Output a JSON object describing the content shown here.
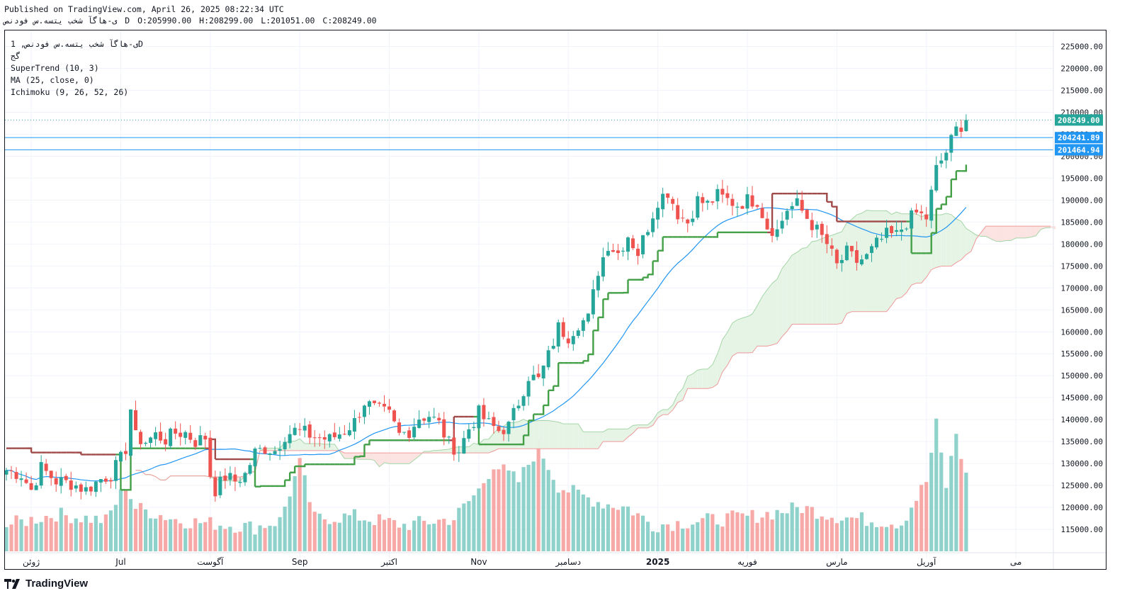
{
  "header": {
    "published": "Published on TradingView.com, April 26, 2025 08:22:34 UTC",
    "symbol": "ی-هاگآ شخب یتسه.س فودنص",
    "interval": "D",
    "open": "O:205990.00",
    "high": "H:208299.00",
    "low": "L:201051.00",
    "close": "C:208249.00"
  },
  "legend": {
    "title": "ی-هاگآ شخب یتسه.س فودنص, 1D",
    "subtitle": "گج",
    "supertrend": "SuperTrend (10, 3)",
    "ma": "MA (25, close, 0)",
    "ichimoku": "Ichimoku (9, 26, 52, 26)"
  },
  "price_tags": {
    "last": "208249.00",
    "level1": "204241.89",
    "level2": "201464.94"
  },
  "footer": {
    "logo_text": "TradingView"
  },
  "colors": {
    "up": "#26a69a",
    "down": "#ef5350",
    "vol_up": "#8fd2cb",
    "vol_down": "#f7a9a7",
    "supertrend_up": "#43a047",
    "supertrend_down": "#a04a4a",
    "ma": "#2196f3",
    "hline": "#2196f3",
    "cloud_green": "#e6f4e6",
    "cloud_red": "#fbe3e2"
  },
  "chart_data": {
    "type": "candlestick",
    "title": "ی-هاگآ شخب یتسه.س فودنص, 1D",
    "y_ticks": [
      "225000.00",
      "220000.00",
      "215000.00",
      "210000.00",
      "205000.00",
      "200000.00",
      "195000.00",
      "190000.00",
      "185000.00",
      "180000.00",
      "175000.00",
      "170000.00",
      "165000.00",
      "160000.00",
      "155000.00",
      "150000.00",
      "145000.00",
      "140000.00",
      "135000.00",
      "130000.00",
      "125000.00",
      "120000.00",
      "115000.00"
    ],
    "ylim": [
      110000,
      228000
    ],
    "x_labels": [
      "ژوئن",
      "Jul",
      "آگوست",
      "Sep",
      "اکتبر",
      "Nov",
      "دسامبر",
      "2025",
      "فوریه",
      "مارس",
      "آوریل",
      "می"
    ],
    "x_label_bars": [
      5,
      23,
      41,
      59,
      77,
      95,
      113,
      131,
      149,
      167,
      185,
      203
    ],
    "n_bars": 210,
    "horizontal_levels": [
      204241.89,
      201464.94
    ],
    "last_price": 208249.0,
    "close_anchors": [
      [
        0,
        128500
      ],
      [
        3,
        127500
      ],
      [
        5,
        124000
      ],
      [
        7,
        129000
      ],
      [
        10,
        126000
      ],
      [
        13,
        125500
      ],
      [
        16,
        124000
      ],
      [
        19,
        126500
      ],
      [
        21,
        127500
      ],
      [
        23,
        131000
      ],
      [
        24,
        133500
      ],
      [
        25,
        142500
      ],
      [
        26,
        136000
      ],
      [
        28,
        135000
      ],
      [
        30,
        136500
      ],
      [
        32,
        135500
      ],
      [
        34,
        137000
      ],
      [
        36,
        137000
      ],
      [
        38,
        135000
      ],
      [
        40,
        136000
      ],
      [
        41,
        127500
      ],
      [
        42,
        124000
      ],
      [
        44,
        127000
      ],
      [
        46,
        126000
      ],
      [
        48,
        127500
      ],
      [
        50,
        132500
      ],
      [
        52,
        133500
      ],
      [
        54,
        133000
      ],
      [
        56,
        136500
      ],
      [
        58,
        137500
      ],
      [
        60,
        137000
      ],
      [
        62,
        136000
      ],
      [
        65,
        135500
      ],
      [
        68,
        137500
      ],
      [
        70,
        139500
      ],
      [
        72,
        144000
      ],
      [
        74,
        142500
      ],
      [
        77,
        141000
      ],
      [
        79,
        136500
      ],
      [
        81,
        137500
      ],
      [
        83,
        140500
      ],
      [
        85,
        141000
      ],
      [
        87,
        139000
      ],
      [
        89,
        134500
      ],
      [
        91,
        133000
      ],
      [
        93,
        138000
      ],
      [
        95,
        141500
      ],
      [
        97,
        139000
      ],
      [
        99,
        137500
      ],
      [
        101,
        138500
      ],
      [
        103,
        144000
      ],
      [
        105,
        150000
      ],
      [
        107,
        149000
      ],
      [
        109,
        154500
      ],
      [
        111,
        161000
      ],
      [
        113,
        159000
      ],
      [
        115,
        162000
      ],
      [
        117,
        163000
      ],
      [
        119,
        174000
      ],
      [
        121,
        180000
      ],
      [
        123,
        178000
      ],
      [
        125,
        182000
      ],
      [
        127,
        178000
      ],
      [
        129,
        184000
      ],
      [
        131,
        190000
      ],
      [
        133,
        192000
      ],
      [
        135,
        187000
      ],
      [
        137,
        185000
      ],
      [
        139,
        190000
      ],
      [
        141,
        189000
      ],
      [
        143,
        191000
      ],
      [
        145,
        190000
      ],
      [
        147,
        189000
      ],
      [
        149,
        190000
      ],
      [
        151,
        190000
      ],
      [
        153,
        184000
      ],
      [
        155,
        183000
      ],
      [
        157,
        188000
      ],
      [
        159,
        189000
      ],
      [
        161,
        186000
      ],
      [
        163,
        183000
      ],
      [
        165,
        180000
      ],
      [
        167,
        175000
      ],
      [
        169,
        178000
      ],
      [
        171,
        176000
      ],
      [
        173,
        177000
      ],
      [
        175,
        180000
      ],
      [
        177,
        182000
      ],
      [
        179,
        182000
      ],
      [
        181,
        185000
      ],
      [
        183,
        187000
      ],
      [
        185,
        186000
      ],
      [
        187,
        197000
      ],
      [
        189,
        201000
      ],
      [
        191,
        206000
      ],
      [
        193,
        208249
      ]
    ],
    "volume_anchors": [
      [
        0,
        116000
      ],
      [
        10,
        118500
      ],
      [
        20,
        117000
      ],
      [
        24,
        125000
      ],
      [
        26,
        120000
      ],
      [
        35,
        117000
      ],
      [
        40,
        116500
      ],
      [
        50,
        115500
      ],
      [
        55,
        117000
      ],
      [
        59,
        130000
      ],
      [
        62,
        117500
      ],
      [
        70,
        118000
      ],
      [
        80,
        116000
      ],
      [
        90,
        117500
      ],
      [
        95,
        124000
      ],
      [
        98,
        130000
      ],
      [
        103,
        126000
      ],
      [
        107,
        134000
      ],
      [
        111,
        125000
      ],
      [
        115,
        123000
      ],
      [
        120,
        121000
      ],
      [
        125,
        120000
      ],
      [
        130,
        116000
      ],
      [
        140,
        117000
      ],
      [
        150,
        118000
      ],
      [
        160,
        120000
      ],
      [
        167,
        118000
      ],
      [
        175,
        117000
      ],
      [
        180,
        116500
      ],
      [
        185,
        126000
      ],
      [
        187,
        139000
      ],
      [
        189,
        125000
      ],
      [
        191,
        137000
      ],
      [
        193,
        127000
      ]
    ],
    "vol_range": [
      110000,
      140000
    ],
    "series": [
      {
        "name": "SuperTrend (10, 3)",
        "type": "step-line"
      },
      {
        "name": "MA (25, close, 0)",
        "type": "line"
      },
      {
        "name": "Ichimoku (9, 26, 52, 26)",
        "type": "cloud"
      }
    ]
  }
}
